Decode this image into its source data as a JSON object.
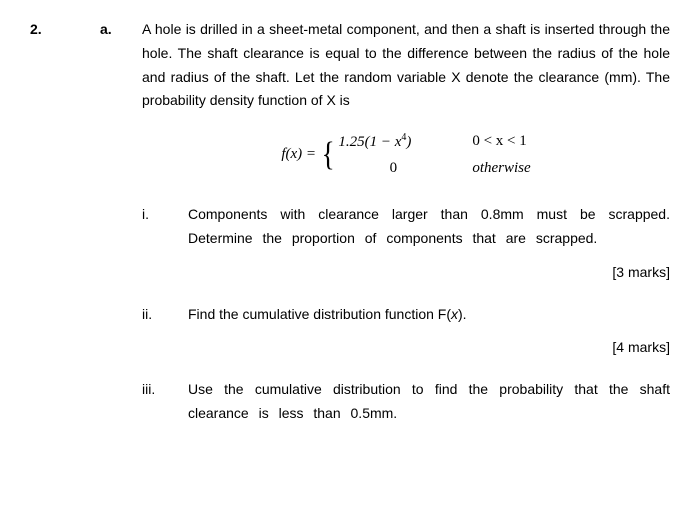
{
  "question_number": "2.",
  "part_a": {
    "label": "a.",
    "text": "A hole is drilled in a sheet-metal component, and then a shaft is inserted through the hole. The shaft clearance is equal to the difference between the radius of the hole and radius of the shaft. Let the random variable X denote the clearance (mm). The probability density function of X is"
  },
  "formula": {
    "lhs": "f(x) = ",
    "case1_left": "1.25(1 − x",
    "case1_exp": "4",
    "case1_close": ")",
    "case1_right": "0 < x < 1",
    "case2_left": "0",
    "case2_right": "otherwise"
  },
  "sub_i": {
    "label": "i.",
    "text": "Components with clearance larger than 0.8mm must be scrapped. Determine the proportion of components that are scrapped.",
    "marks": "[3 marks]"
  },
  "sub_ii": {
    "label": "ii.",
    "text_pre": "Find the cumulative distribution function F(",
    "text_var": "x",
    "text_post": ").",
    "marks": "[4 marks]"
  },
  "sub_iii": {
    "label": "iii.",
    "text": "Use the cumulative distribution to find the probability that the shaft clearance is less than 0.5mm."
  }
}
